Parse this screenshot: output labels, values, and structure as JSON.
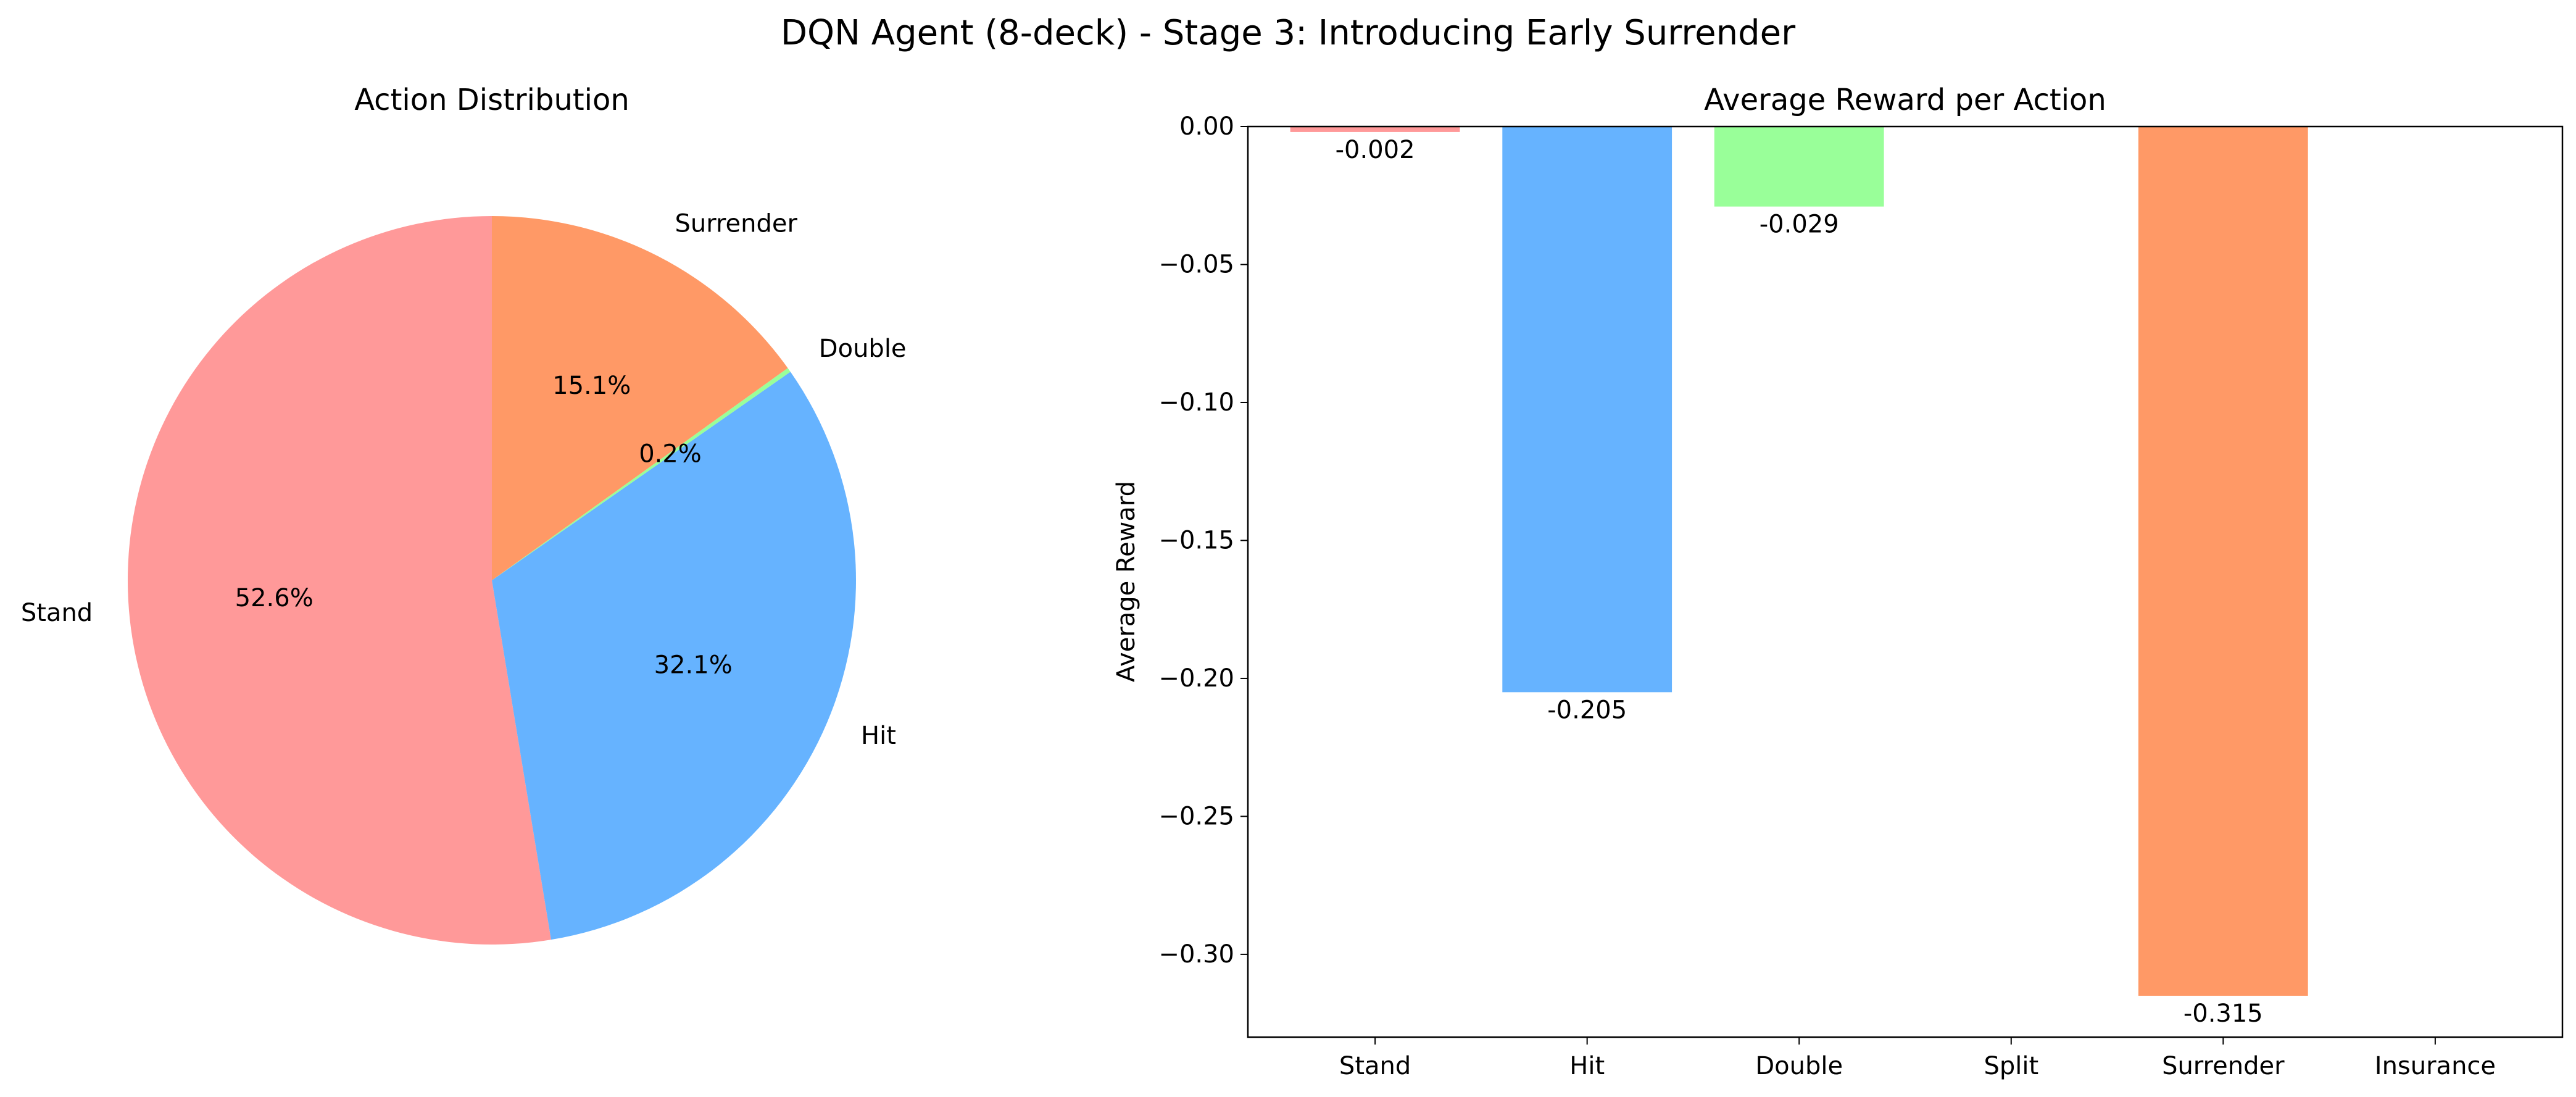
{
  "figure": {
    "suptitle": "DQN Agent (8-deck) - Stage 3: Introducing Early Surrender"
  },
  "chart_data": [
    {
      "type": "pie",
      "title": "Action Distribution",
      "labels": [
        "Stand",
        "Hit",
        "Double",
        "Surrender"
      ],
      "values": [
        52.6,
        32.1,
        0.2,
        15.1
      ],
      "pct_labels": [
        "52.6%",
        "32.1%",
        "0.2%",
        "15.1%"
      ],
      "colors": [
        "#ff9999",
        "#66b3ff",
        "#99ff99",
        "#ff9966"
      ],
      "start_angle_deg": 90,
      "direction": "counterclockwise"
    },
    {
      "type": "bar",
      "title": "Average Reward per Action",
      "xlabel": "",
      "ylabel": "Average Reward",
      "categories": [
        "Stand",
        "Hit",
        "Double",
        "Split",
        "Surrender",
        "Insurance"
      ],
      "values": [
        -0.002,
        -0.205,
        -0.029,
        null,
        -0.315,
        null
      ],
      "value_labels": [
        "-0.002",
        "-0.205",
        "-0.029",
        "",
        "-0.315",
        ""
      ],
      "colors": [
        "#ff9999",
        "#66b3ff",
        "#99ff99",
        "#ffcc99",
        "#ff9966",
        "#c2c2f0"
      ],
      "ylim": [
        -0.33,
        0.0
      ],
      "yticks": [
        0.0,
        -0.05,
        -0.1,
        -0.15,
        -0.2,
        -0.25,
        -0.3
      ],
      "ytick_labels": [
        "0.00",
        "−0.05",
        "−0.10",
        "−0.15",
        "−0.20",
        "−0.25",
        "−0.30"
      ],
      "grid": false
    }
  ]
}
